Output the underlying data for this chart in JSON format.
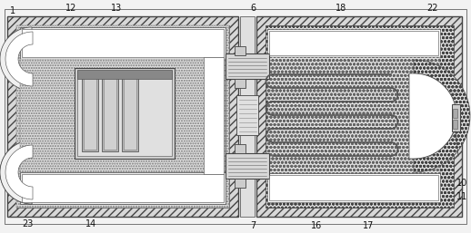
{
  "figsize": [
    5.18,
    2.57
  ],
  "dpi": 100,
  "bg": "#f2f2f2",
  "lc": "#444444",
  "hatch_tri": "/",
  "hatch_dot": "o",
  "fc_outer": "#e8e8e8",
  "fc_white": "#ffffff",
  "fc_hatch": "#d8d8d8",
  "fc_mid": "#cccccc",
  "fc_dark": "#aaaaaa"
}
